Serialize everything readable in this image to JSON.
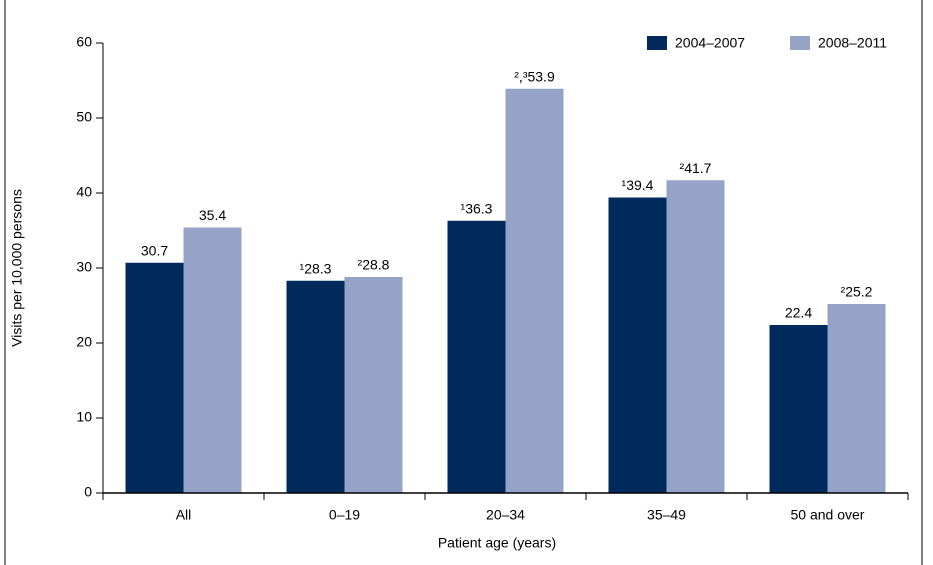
{
  "chart_data": {
    "type": "bar",
    "x_label": "Patient age (years)",
    "y_label": "Visits per 10,000 persons",
    "categories": [
      "All",
      "0–19",
      "20–34",
      "35–49",
      "50 and over"
    ],
    "series": [
      {
        "name": "2004–2007",
        "color": "#002a5c",
        "values": [
          30.7,
          28.3,
          36.3,
          39.4,
          22.4
        ],
        "value_labels": [
          "30.7",
          "¹28.3",
          "¹36.3",
          "¹39.4",
          "22.4"
        ]
      },
      {
        "name": "2008–2011",
        "color": "#95a3c6",
        "values": [
          35.4,
          28.8,
          53.9,
          41.7,
          25.2
        ],
        "value_labels": [
          "35.4",
          "²28.8",
          "²,³53.9",
          "²41.7",
          "²25.2"
        ]
      }
    ],
    "ylim": [
      0,
      60
    ],
    "yticks": [
      0,
      10,
      20,
      30,
      40,
      50,
      60
    ],
    "legend": "top-right"
  }
}
